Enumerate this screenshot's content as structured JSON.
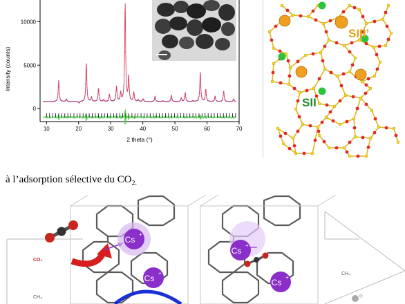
{
  "chart_data": {
    "type": "line",
    "xlabel": "2 theta (°)",
    "ylabel": "Intensity (counts)",
    "xlim": [
      8,
      70
    ],
    "ylim": [
      -1500,
      12500
    ],
    "x_ticks": [
      "10",
      "20",
      "30",
      "40",
      "50",
      "60",
      "70"
    ],
    "y_ticks": [
      "10000",
      "5000",
      "0"
    ],
    "peaks": [
      {
        "x": 13.8,
        "y": 3200
      },
      {
        "x": 16.2,
        "y": 1100
      },
      {
        "x": 20.1,
        "y": 600
      },
      {
        "x": 22.4,
        "y": 5200
      },
      {
        "x": 24.0,
        "y": 1300
      },
      {
        "x": 26.2,
        "y": 2300
      },
      {
        "x": 27.8,
        "y": 1000
      },
      {
        "x": 29.6,
        "y": 1600
      },
      {
        "x": 31.8,
        "y": 2500
      },
      {
        "x": 33.1,
        "y": 1800
      },
      {
        "x": 34.5,
        "y": 12000
      },
      {
        "x": 35.6,
        "y": 3600
      },
      {
        "x": 37.2,
        "y": 1800
      },
      {
        "x": 38.6,
        "y": 1000
      },
      {
        "x": 40.1,
        "y": 1100
      },
      {
        "x": 43.8,
        "y": 1400
      },
      {
        "x": 46.2,
        "y": 900
      },
      {
        "x": 48.9,
        "y": 1500
      },
      {
        "x": 52.0,
        "y": 1200
      },
      {
        "x": 53.2,
        "y": 1800
      },
      {
        "x": 55.6,
        "y": 900
      },
      {
        "x": 57.9,
        "y": 4200
      },
      {
        "x": 59.6,
        "y": 2200
      },
      {
        "x": 62.5,
        "y": 1400
      },
      {
        "x": 65.2,
        "y": 2000
      },
      {
        "x": 68.3,
        "y": 1100
      }
    ],
    "baseline": 800,
    "difference_offset": -1000
  },
  "structure": {
    "label_siii": "SIII’",
    "label_sii": "SII"
  },
  "caption": {
    "text": "à l’adsorption sélective du CO",
    "subscript": "2."
  },
  "scheme": {
    "co2": "CO₂",
    "ch4": "CH₄",
    "ch4_right": "CH₄",
    "cs": "Cs",
    "cs_sup": "+"
  },
  "colors": {
    "fit_line": "#d83a57",
    "observed": "#6b5ad6",
    "difference": "#4ed14e",
    "framework": "#e2b41c",
    "oxygen": "#e3262a",
    "cation_orange": "#f0a021",
    "cation_green": "#2fc23d",
    "cs_purple": "#8a2fc9",
    "arrow_red": "#d71e1e",
    "arrow_blue": "#1a2fd6"
  }
}
